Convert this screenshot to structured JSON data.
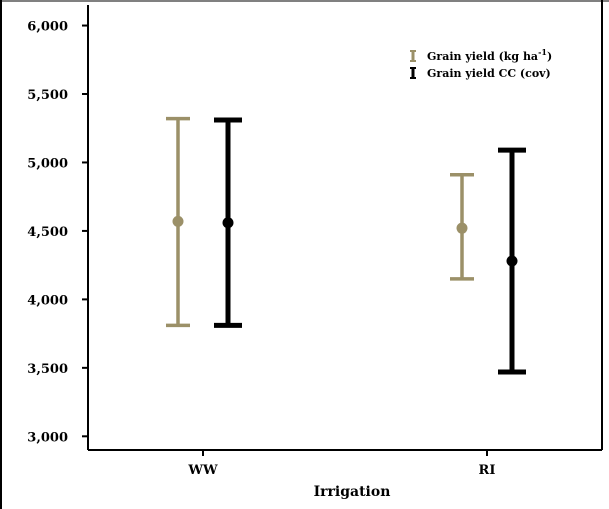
{
  "chart_data": {
    "type": "errorbar",
    "xlabel": "Irrigation",
    "ylabel": "",
    "categories": [
      "WW",
      "RI"
    ],
    "ylim": [
      2900,
      6150
    ],
    "yticks": [
      3000,
      3500,
      4000,
      4500,
      5000,
      5500,
      6000
    ],
    "ytick_labels": [
      "3,000",
      "3,500",
      "4,000",
      "4,500",
      "5,000",
      "5,500",
      "6,000"
    ],
    "grid": false,
    "legend_position": "top-right",
    "series": [
      {
        "name": "Grain yield (kg ha-1)",
        "legend_main": "Grain yield (kg ha",
        "legend_sup": "-1",
        "legend_tail": ")",
        "color": "#9b9068",
        "means": [
          4570,
          4520
        ],
        "lower": [
          3810,
          4150
        ],
        "upper": [
          5320,
          4910
        ]
      },
      {
        "name": "Grain yield CC (cov)",
        "legend_main": "Grain yield CC (cov)",
        "legend_sup": "",
        "legend_tail": "",
        "color": "#000000",
        "means": [
          4560,
          4280
        ],
        "lower": [
          3810,
          3470
        ],
        "upper": [
          5310,
          5090
        ]
      }
    ]
  }
}
